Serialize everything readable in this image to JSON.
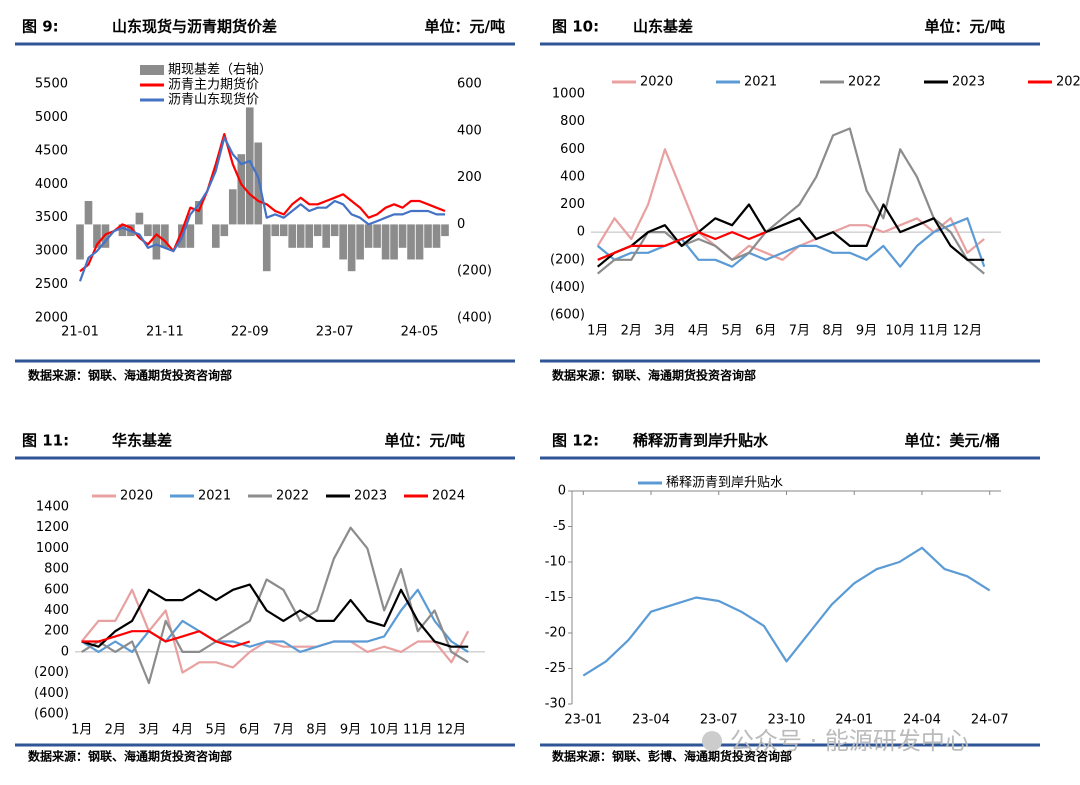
{
  "chart_data": [
    {
      "type": "combo",
      "figure": "图 9:",
      "title": "山东现货与沥青期货价差",
      "unit": "单位：元/吨",
      "source": "数据来源：钢联、海通期货投资咨询部",
      "categories": [
        "21-01",
        null,
        null,
        null,
        null,
        null,
        null,
        null,
        null,
        null,
        "21-11",
        null,
        null,
        null,
        null,
        null,
        null,
        null,
        null,
        null,
        "22-09",
        null,
        null,
        null,
        null,
        null,
        null,
        null,
        null,
        null,
        "23-07",
        null,
        null,
        null,
        null,
        null,
        null,
        null,
        null,
        null,
        "24-05",
        null,
        null,
        null
      ],
      "series": [
        {
          "name": "期现基差（右轴）",
          "type": "bar",
          "axis": "y2",
          "color": "#8c8c8c",
          "values": [
            -150,
            100,
            -100,
            -100,
            0,
            -50,
            -50,
            50,
            -50,
            -150,
            -100,
            0,
            -100,
            -100,
            100,
            0,
            -100,
            -50,
            150,
            300,
            500,
            350,
            -200,
            -50,
            -50,
            -100,
            -100,
            -100,
            -50,
            -100,
            -50,
            -150,
            -200,
            -150,
            -100,
            -100,
            -150,
            -150,
            -100,
            -150,
            -150,
            -100,
            -100,
            -50
          ]
        },
        {
          "name": "沥青主力期货价",
          "type": "line",
          "color": "#ff0000",
          "values": [
            2700,
            2800,
            3100,
            3250,
            3300,
            3400,
            3350,
            3200,
            3100,
            3250,
            3150,
            3000,
            3300,
            3650,
            3600,
            3900,
            4300,
            4750,
            4300,
            4000,
            3850,
            3750,
            3700,
            3600,
            3550,
            3700,
            3800,
            3700,
            3700,
            3750,
            3800,
            3850,
            3750,
            3650,
            3500,
            3550,
            3650,
            3700,
            3650,
            3750,
            3750,
            3700,
            3650,
            3600
          ]
        },
        {
          "name": "沥青山东现货价",
          "type": "line",
          "color": "#4472c4",
          "values": [
            2550,
            2900,
            3000,
            3150,
            3300,
            3350,
            3300,
            3250,
            3050,
            3100,
            3050,
            3000,
            3200,
            3550,
            3700,
            3900,
            4200,
            4700,
            4450,
            4300,
            4350,
            4100,
            3500,
            3550,
            3500,
            3600,
            3700,
            3600,
            3650,
            3650,
            3750,
            3700,
            3550,
            3500,
            3400,
            3450,
            3500,
            3550,
            3550,
            3600,
            3600,
            3600,
            3550,
            3550
          ]
        }
      ],
      "ylim": [
        2000,
        5500
      ],
      "yticks": [
        2000,
        2500,
        3000,
        3500,
        4000,
        4500,
        5000,
        5500
      ],
      "y2lim": [
        -400,
        600
      ],
      "y2ticks": [
        {
          "value": -400,
          "label": "(400)"
        },
        {
          "value": -200,
          "label": "(200)"
        },
        0,
        200,
        400,
        600
      ],
      "negative_tick_color": "#ff0000",
      "legend": "upper left"
    },
    {
      "type": "line",
      "figure": "图 10:",
      "title": "山东基差",
      "unit": "单位：元/吨",
      "source": "数据来源：钢联、海通期货投资咨询部",
      "x": [
        1,
        1.5,
        2,
        2.5,
        3,
        3.5,
        4,
        4.5,
        5,
        5.5,
        6,
        6.5,
        7,
        7.5,
        8,
        8.5,
        9,
        9.5,
        10,
        10.5,
        11,
        11.5,
        12,
        12.5
      ],
      "series": [
        {
          "name": "2020",
          "color": "#e8a0a0",
          "values": [
            -100,
            100,
            -50,
            200,
            600,
            300,
            0,
            -100,
            -200,
            -100,
            -150,
            -200,
            -100,
            -50,
            0,
            50,
            50,
            0,
            50,
            100,
            0,
            100,
            -150,
            -50
          ]
        },
        {
          "name": "2021",
          "color": "#5b9bd5",
          "values": [
            -100,
            -200,
            -150,
            -150,
            -100,
            -50,
            -200,
            -200,
            -250,
            -150,
            -200,
            -150,
            -100,
            -100,
            -150,
            -150,
            -200,
            -100,
            -250,
            -100,
            0,
            50,
            100,
            -250
          ]
        },
        {
          "name": "2022",
          "color": "#8c8c8c",
          "values": [
            -300,
            -200,
            -200,
            0,
            0,
            -100,
            -50,
            -100,
            -200,
            -150,
            0,
            100,
            200,
            400,
            700,
            750,
            300,
            100,
            600,
            400,
            100,
            0,
            -200,
            -300
          ]
        },
        {
          "name": "2023",
          "color": "#000000",
          "values": [
            -250,
            -150,
            -100,
            0,
            50,
            -100,
            0,
            100,
            50,
            200,
            0,
            50,
            100,
            -50,
            0,
            -100,
            -100,
            200,
            0,
            50,
            100,
            -100,
            -200,
            -200
          ]
        },
        {
          "name": "2024",
          "color": "#ff0000",
          "values": [
            -200,
            -150,
            -100,
            -100,
            -100,
            -50,
            0,
            -50,
            0,
            -50,
            0,
            null,
            null,
            null,
            null,
            null,
            null,
            null,
            null,
            null,
            null,
            null,
            null,
            null
          ]
        }
      ],
      "xlim": [
        0.8,
        13
      ],
      "xticks": [
        {
          "value": 1,
          "label": "1月"
        },
        {
          "value": 2,
          "label": "2月"
        },
        {
          "value": 3,
          "label": "3月"
        },
        {
          "value": 4,
          "label": "4月"
        },
        {
          "value": 5,
          "label": "5月"
        },
        {
          "value": 6,
          "label": "6月"
        },
        {
          "value": 7,
          "label": "7月"
        },
        {
          "value": 8,
          "label": "8月"
        },
        {
          "value": 9,
          "label": "9月"
        },
        {
          "value": 10,
          "label": "10月"
        },
        {
          "value": 11,
          "label": "11月"
        },
        {
          "value": 12,
          "label": "12月"
        }
      ],
      "ylim": [
        -600,
        1000
      ],
      "yticks": [
        {
          "value": -600,
          "label": "(600)"
        },
        {
          "value": -400,
          "label": "(400)"
        },
        {
          "value": -200,
          "label": "(200)"
        },
        0,
        200,
        400,
        600,
        800,
        1000
      ],
      "negative_tick_color": "#ff0000",
      "legend": "top"
    },
    {
      "type": "line",
      "figure": "图 11:",
      "title": "华东基差",
      "unit": "单位：元/吨",
      "source": "数据来源：钢联、海通期货投资咨询部",
      "x": [
        1,
        1.5,
        2,
        2.5,
        3,
        3.5,
        4,
        4.5,
        5,
        5.5,
        6,
        6.5,
        7,
        7.5,
        8,
        8.5,
        9,
        9.5,
        10,
        10.5,
        11,
        11.5,
        12,
        12.5
      ],
      "series": [
        {
          "name": "2020",
          "color": "#e8a0a0",
          "values": [
            100,
            300,
            300,
            600,
            200,
            400,
            -200,
            -100,
            -100,
            -150,
            0,
            100,
            50,
            50,
            50,
            100,
            100,
            0,
            50,
            0,
            100,
            100,
            -100,
            200
          ]
        },
        {
          "name": "2021",
          "color": "#5b9bd5",
          "values": [
            100,
            0,
            100,
            0,
            200,
            100,
            300,
            200,
            100,
            100,
            50,
            100,
            100,
            0,
            50,
            100,
            100,
            100,
            150,
            400,
            600,
            300,
            100,
            0
          ]
        },
        {
          "name": "2022",
          "color": "#8c8c8c",
          "values": [
            0,
            100,
            0,
            100,
            -300,
            300,
            0,
            0,
            100,
            200,
            300,
            700,
            600,
            300,
            400,
            900,
            1200,
            1000,
            400,
            800,
            200,
            400,
            0,
            -100
          ]
        },
        {
          "name": "2023",
          "color": "#000000",
          "values": [
            100,
            50,
            200,
            300,
            600,
            500,
            500,
            600,
            500,
            600,
            650,
            400,
            300,
            400,
            300,
            300,
            500,
            300,
            250,
            600,
            300,
            100,
            50,
            50
          ]
        },
        {
          "name": "2024",
          "color": "#ff0000",
          "values": [
            100,
            100,
            150,
            200,
            200,
            100,
            150,
            200,
            100,
            50,
            100,
            null,
            null,
            null,
            null,
            null,
            null,
            null,
            null,
            null,
            null,
            null,
            null,
            null
          ]
        }
      ],
      "xlim": [
        0.8,
        13
      ],
      "xticks": [
        {
          "value": 1,
          "label": "1月"
        },
        {
          "value": 2,
          "label": "2月"
        },
        {
          "value": 3,
          "label": "3月"
        },
        {
          "value": 4,
          "label": "4月"
        },
        {
          "value": 5,
          "label": "5月"
        },
        {
          "value": 6,
          "label": "6月"
        },
        {
          "value": 7,
          "label": "7月"
        },
        {
          "value": 8,
          "label": "8月"
        },
        {
          "value": 9,
          "label": "9月"
        },
        {
          "value": 10,
          "label": "10月"
        },
        {
          "value": 11,
          "label": "11月"
        },
        {
          "value": 12,
          "label": "12月"
        }
      ],
      "ylim": [
        -600,
        1400
      ],
      "yticks": [
        {
          "value": -600,
          "label": "(600)"
        },
        {
          "value": -400,
          "label": "(400)"
        },
        {
          "value": -200,
          "label": "(200)"
        },
        0,
        200,
        400,
        600,
        800,
        1000,
        1200,
        1400
      ],
      "negative_tick_color": "#ff0000",
      "legend": "top"
    },
    {
      "type": "line",
      "figure": "图 12:",
      "title": "稀释沥青到岸升贴水",
      "unit": "单位：美元/桶",
      "source": "数据来源：钢联、彭博、海通期货投资咨询部",
      "x": [
        0,
        1,
        2,
        3,
        4,
        5,
        6,
        7,
        8,
        9,
        10,
        11,
        12,
        13,
        14,
        15,
        16,
        17,
        18
      ],
      "series": [
        {
          "name": "稀释沥青到岸升贴水",
          "color": "#5b9bd5",
          "values": [
            -26,
            -24,
            -21,
            -17,
            -16,
            -15,
            -15.5,
            -17,
            -19,
            -24,
            -20,
            -16,
            -13,
            -11,
            -10,
            -8,
            -11,
            -12,
            -14
          ]
        }
      ],
      "xlim": [
        -0.5,
        18.5
      ],
      "xticks": [
        {
          "value": 0,
          "label": "23-01"
        },
        {
          "value": 3,
          "label": "23-04"
        },
        {
          "value": 6,
          "label": "23-07"
        },
        {
          "value": 9,
          "label": "23-10"
        },
        {
          "value": 12,
          "label": "24-01"
        },
        {
          "value": 15,
          "label": "24-04"
        },
        {
          "value": 18,
          "label": "24-07"
        }
      ],
      "ylim": [
        -30,
        0
      ],
      "yticks": [
        -30,
        -25,
        -20,
        -15,
        -10,
        -5,
        0
      ],
      "axes": true,
      "legend": "top"
    }
  ],
  "watermark": "公众号 · 能源研发中心"
}
